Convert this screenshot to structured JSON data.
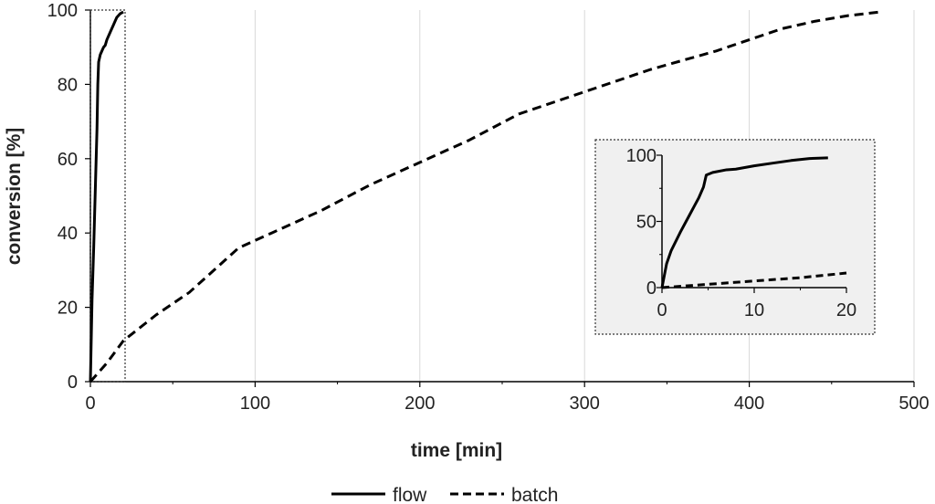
{
  "chart_data": [
    {
      "type": "line",
      "title": "",
      "xlabel": "time [min]",
      "ylabel": "conversion [%]",
      "xlim": [
        0,
        500
      ],
      "ylim": [
        0,
        100
      ],
      "xticks": [
        0,
        100,
        200,
        300,
        400,
        500
      ],
      "yticks": [
        0,
        20,
        40,
        60,
        80,
        100
      ],
      "grid": "vertical",
      "legend": "bottom-center",
      "series": [
        {
          "name": "flow",
          "style": "solid",
          "color": "#000000",
          "points": [
            [
              0,
              0
            ],
            [
              1,
              22
            ],
            [
              2,
              36
            ],
            [
              3,
              52
            ],
            [
              4,
              68
            ],
            [
              4.5,
              80
            ],
            [
              5,
              86
            ],
            [
              6,
              88
            ],
            [
              7,
              89
            ],
            [
              8,
              90
            ],
            [
              9,
              90.5
            ],
            [
              10,
              92
            ],
            [
              12,
              94
            ],
            [
              14,
              96
            ],
            [
              16,
              98
            ],
            [
              18,
              99
            ],
            [
              20,
              99.5
            ]
          ]
        },
        {
          "name": "batch",
          "style": "dashed",
          "color": "#000000",
          "points": [
            [
              0,
              0
            ],
            [
              10,
              5
            ],
            [
              20,
              11
            ],
            [
              40,
              18
            ],
            [
              60,
              24
            ],
            [
              80,
              32
            ],
            [
              90,
              36
            ],
            [
              110,
              40
            ],
            [
              140,
              46
            ],
            [
              170,
              53
            ],
            [
              200,
              59
            ],
            [
              230,
              65
            ],
            [
              260,
              72
            ],
            [
              300,
              78
            ],
            [
              340,
              84
            ],
            [
              380,
              89
            ],
            [
              400,
              92
            ],
            [
              420,
              95
            ],
            [
              440,
              97
            ],
            [
              460,
              98.5
            ],
            [
              480,
              99.5
            ]
          ]
        }
      ]
    },
    {
      "type": "line",
      "title": "",
      "role": "inset",
      "legend": "none",
      "background": "#f0f0f0",
      "xlim": [
        0,
        20
      ],
      "ylim": [
        0,
        100
      ],
      "xticks": [
        0,
        10,
        20
      ],
      "yticks": [
        0,
        50,
        100
      ],
      "series": [
        {
          "style": "solid",
          "color": "#000000",
          "points": [
            [
              0,
              0
            ],
            [
              0.5,
              18
            ],
            [
              1,
              28
            ],
            [
              2,
              42
            ],
            [
              3,
              55
            ],
            [
              4,
              68
            ],
            [
              4.5,
              76
            ],
            [
              4.8,
              85
            ],
            [
              5.5,
              87
            ],
            [
              7,
              89
            ],
            [
              8,
              89.5
            ],
            [
              10,
              92
            ],
            [
              12,
              94
            ],
            [
              14,
              96
            ],
            [
              16,
              97.5
            ],
            [
              18,
              98
            ]
          ]
        },
        {
          "style": "dashed",
          "color": "#000000",
          "points": [
            [
              0,
              0
            ],
            [
              5,
              2.5
            ],
            [
              10,
              5
            ],
            [
              15,
              7.5
            ],
            [
              20,
              11
            ]
          ]
        }
      ]
    }
  ]
}
